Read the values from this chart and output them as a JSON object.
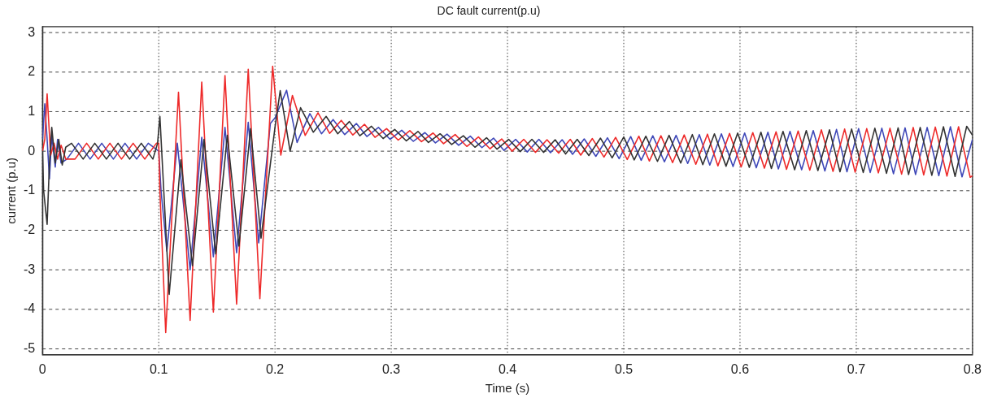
{
  "chart_data": {
    "type": "line",
    "title": "DC fault current(p.u)",
    "xlabel": "Time (s)",
    "ylabel": "current (p.u)",
    "xlim": [
      0,
      0.8
    ],
    "xticks": [
      0,
      0.1,
      0.2,
      0.3,
      0.4,
      0.5,
      0.6,
      0.7,
      0.8
    ],
    "ylim": [
      -5.15,
      3.15
    ],
    "yticks": [
      -5,
      -4,
      -3,
      -2,
      -1,
      0,
      1,
      2,
      3
    ],
    "grid": true,
    "legend": false,
    "marker": "none",
    "line_style": "solid",
    "series": [
      {
        "color": "#333333",
        "x": [
          0,
          0.001,
          0.004,
          0.006,
          0.008,
          0.011,
          0.014,
          0.017,
          0.02,
          0.025,
          0.035,
          0.045,
          0.055,
          0.065,
          0.075,
          0.085,
          0.095,
          0.099,
          0.101,
          0.109,
          0.119,
          0.129,
          0.139,
          0.149,
          0.159,
          0.169,
          0.179,
          0.188,
          0.2,
          0.2045,
          0.213,
          0.222,
          0.233,
          0.244,
          0.254,
          0.264,
          0.273,
          0.283,
          0.293,
          0.303,
          0.313,
          0.323,
          0.332,
          0.342,
          0.352,
          0.362,
          0.372,
          0.382,
          0.391,
          0.401,
          0.411,
          0.421,
          0.431,
          0.441,
          0.45,
          0.46,
          0.47,
          0.48,
          0.49,
          0.5,
          0.509,
          0.519,
          0.529,
          0.539,
          0.549,
          0.559,
          0.568,
          0.578,
          0.588,
          0.598,
          0.608,
          0.618,
          0.627,
          0.637,
          0.647,
          0.657,
          0.667,
          0.677,
          0.686,
          0.696,
          0.706,
          0.716,
          0.726,
          0.736,
          0.745,
          0.755,
          0.765,
          0.775,
          0.785,
          0.795,
          0.8
        ],
        "values": [
          0,
          -1.0,
          -1.85,
          -0.3,
          0.6,
          -0.3,
          0.3,
          -0.35,
          0.1,
          0.2,
          -0.2,
          0.2,
          -0.2,
          0.2,
          -0.2,
          0.2,
          -0.2,
          0.2,
          0.88,
          -3.62,
          -0.22,
          -2.9,
          0.3,
          -2.6,
          0.4,
          -2.4,
          0.57,
          -2.2,
          0.6,
          1.53,
          0.0,
          1.1,
          0.48,
          0.88,
          0.44,
          0.75,
          0.39,
          0.63,
          0.32,
          0.55,
          0.26,
          0.5,
          0.22,
          0.44,
          0.17,
          0.39,
          0.1,
          0.34,
          0.05,
          0.3,
          -0.01,
          0.3,
          -0.03,
          0.29,
          -0.07,
          0.3,
          -0.11,
          0.33,
          -0.17,
          0.36,
          -0.22,
          0.38,
          -0.26,
          0.4,
          -0.3,
          0.42,
          -0.34,
          0.44,
          -0.38,
          0.46,
          -0.41,
          0.48,
          -0.44,
          0.5,
          -0.47,
          0.52,
          -0.49,
          0.54,
          -0.52,
          0.56,
          -0.54,
          0.58,
          -0.56,
          0.59,
          -0.59,
          0.6,
          -0.61,
          0.62,
          -0.64,
          0.63,
          0.4
        ]
      },
      {
        "color": "#ee2a2a",
        "x": [
          0,
          0.002,
          0.004,
          0.007,
          0.01,
          0.013,
          0.016,
          0.02,
          0.028,
          0.038,
          0.048,
          0.058,
          0.068,
          0.078,
          0.088,
          0.098,
          0.1,
          0.101,
          0.106,
          0.117,
          0.127,
          0.137,
          0.147,
          0.157,
          0.167,
          0.177,
          0.187,
          0.198,
          0.205,
          0.215,
          0.226,
          0.237,
          0.247,
          0.257,
          0.267,
          0.277,
          0.286,
          0.296,
          0.306,
          0.316,
          0.326,
          0.336,
          0.345,
          0.355,
          0.365,
          0.375,
          0.385,
          0.395,
          0.404,
          0.414,
          0.424,
          0.434,
          0.444,
          0.454,
          0.463,
          0.473,
          0.483,
          0.493,
          0.503,
          0.513,
          0.522,
          0.532,
          0.542,
          0.552,
          0.562,
          0.572,
          0.581,
          0.591,
          0.601,
          0.611,
          0.621,
          0.631,
          0.64,
          0.65,
          0.66,
          0.67,
          0.68,
          0.69,
          0.699,
          0.709,
          0.719,
          0.729,
          0.739,
          0.749,
          0.758,
          0.768,
          0.778,
          0.788,
          0.798,
          0.8
        ],
        "values": [
          0,
          0.3,
          1.45,
          -0.1,
          0.2,
          -0.2,
          0.15,
          -0.2,
          -0.2,
          0.2,
          -0.2,
          0.2,
          -0.2,
          0.2,
          -0.2,
          0.2,
          0.2,
          -1.0,
          -4.59,
          1.49,
          -4.28,
          1.75,
          -4.07,
          1.91,
          -3.87,
          2.07,
          -3.73,
          2.15,
          -0.1,
          1.41,
          0.4,
          0.97,
          0.45,
          0.78,
          0.41,
          0.68,
          0.35,
          0.57,
          0.28,
          0.52,
          0.24,
          0.46,
          0.19,
          0.42,
          0.12,
          0.36,
          0.06,
          0.31,
          0.0,
          0.3,
          -0.03,
          0.29,
          -0.05,
          0.3,
          -0.1,
          0.32,
          -0.15,
          0.35,
          -0.21,
          0.38,
          -0.25,
          0.39,
          -0.29,
          0.41,
          -0.33,
          0.43,
          -0.37,
          0.45,
          -0.4,
          0.47,
          -0.43,
          0.49,
          -0.46,
          0.51,
          -0.48,
          0.54,
          -0.51,
          0.56,
          -0.53,
          0.57,
          -0.55,
          0.58,
          -0.58,
          0.6,
          -0.6,
          0.61,
          -0.63,
          0.62,
          -0.66,
          -0.62
        ]
      },
      {
        "color": "#3f48b8",
        "x": [
          0,
          0.002,
          0.004,
          0.006,
          0.008,
          0.011,
          0.013,
          0.016,
          0.021,
          0.031,
          0.041,
          0.051,
          0.061,
          0.071,
          0.081,
          0.091,
          0.1,
          0.102,
          0.107,
          0.116,
          0.127,
          0.137,
          0.147,
          0.157,
          0.167,
          0.177,
          0.186,
          0.196,
          0.2,
          0.21,
          0.219,
          0.23,
          0.24,
          0.25,
          0.26,
          0.27,
          0.279,
          0.289,
          0.299,
          0.309,
          0.319,
          0.329,
          0.338,
          0.348,
          0.358,
          0.368,
          0.378,
          0.388,
          0.397,
          0.407,
          0.417,
          0.427,
          0.437,
          0.447,
          0.456,
          0.466,
          0.476,
          0.486,
          0.496,
          0.506,
          0.515,
          0.525,
          0.535,
          0.545,
          0.555,
          0.565,
          0.574,
          0.584,
          0.594,
          0.604,
          0.614,
          0.624,
          0.633,
          0.643,
          0.653,
          0.663,
          0.673,
          0.683,
          0.692,
          0.702,
          0.712,
          0.722,
          0.732,
          0.742,
          0.751,
          0.761,
          0.771,
          0.781,
          0.791,
          0.8
        ],
        "values": [
          0.3,
          1.2,
          0.3,
          -0.7,
          0.4,
          -0.4,
          0.3,
          -0.3,
          -0.2,
          0.2,
          -0.2,
          0.2,
          -0.2,
          0.2,
          -0.2,
          0.2,
          0.0,
          -1.0,
          -2.53,
          0.2,
          -3.0,
          0.35,
          -2.67,
          0.6,
          -2.57,
          0.73,
          -2.32,
          0.7,
          0.84,
          1.54,
          0.22,
          0.95,
          0.44,
          0.8,
          0.42,
          0.7,
          0.37,
          0.6,
          0.3,
          0.53,
          0.25,
          0.47,
          0.21,
          0.43,
          0.15,
          0.38,
          0.09,
          0.33,
          0.02,
          0.3,
          -0.02,
          0.3,
          -0.04,
          0.29,
          -0.08,
          0.31,
          -0.13,
          0.34,
          -0.19,
          0.37,
          -0.23,
          0.39,
          -0.27,
          0.4,
          -0.31,
          0.42,
          -0.35,
          0.44,
          -0.39,
          0.46,
          -0.42,
          0.48,
          -0.45,
          0.5,
          -0.47,
          0.52,
          -0.5,
          0.55,
          -0.52,
          0.57,
          -0.54,
          0.58,
          -0.57,
          0.59,
          -0.59,
          0.6,
          -0.62,
          0.62,
          -0.65,
          0.3
        ]
      }
    ]
  }
}
